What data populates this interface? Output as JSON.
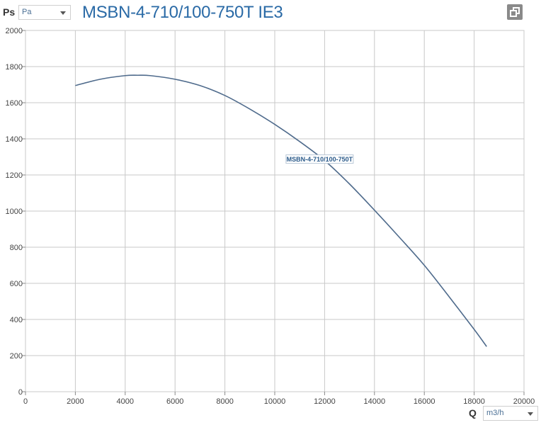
{
  "header": {
    "y_quantity": "Ps",
    "y_unit_selected": "Pa",
    "title": "MSBN-4-710/100-750T IE3",
    "copy_icon": "copy-icon"
  },
  "footer": {
    "x_quantity": "Q",
    "x_unit_selected": "m3/h"
  },
  "colors": {
    "curve": "#4f6b8c",
    "grid": "#c8c8c8",
    "title": "#2a6aa6"
  },
  "chart_data": {
    "type": "line",
    "title": "MSBN-4-710/100-750T IE3",
    "xlabel": "Q",
    "ylabel": "Ps",
    "xlim": [
      0,
      20000
    ],
    "ylim": [
      0,
      2000
    ],
    "x_ticks": [
      "0",
      "2000",
      "4000",
      "6000",
      "8000",
      "10000",
      "12000",
      "14000",
      "16000",
      "18000",
      "20000"
    ],
    "y_ticks": [
      "0",
      "200",
      "400",
      "600",
      "800",
      "1000",
      "1200",
      "1400",
      "1600",
      "1800",
      "2000"
    ],
    "grid": true,
    "legend": "none",
    "series": [
      {
        "name": "MSBN-4-710/100-750T",
        "label_at": [
          12000,
          1280
        ],
        "x": [
          2000,
          3000,
          4000,
          4500,
          5000,
          6000,
          7000,
          8000,
          9000,
          10000,
          11000,
          12000,
          13000,
          14000,
          15000,
          16000,
          17000,
          18000,
          18500
        ],
        "values": [
          1695,
          1730,
          1750,
          1752,
          1750,
          1730,
          1695,
          1640,
          1565,
          1480,
          1385,
          1280,
          1150,
          1005,
          855,
          700,
          525,
          345,
          250
        ]
      }
    ]
  }
}
